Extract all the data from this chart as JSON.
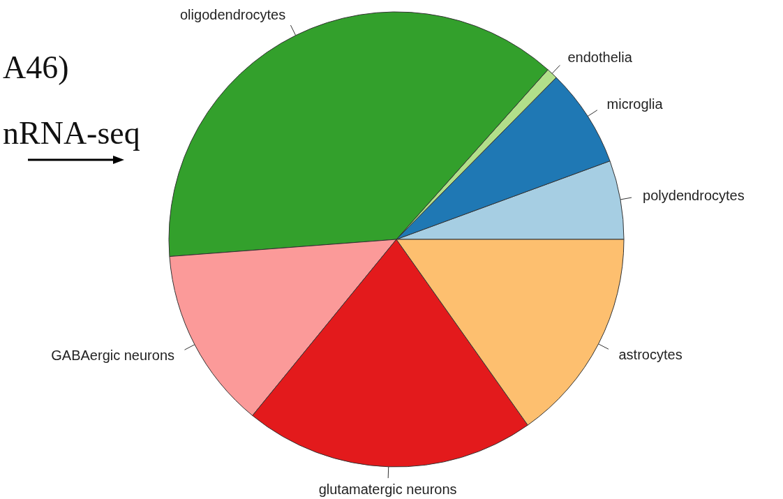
{
  "chart_data": {
    "type": "pie",
    "categories": [
      "polydendrocytes",
      "microglia",
      "endothelia",
      "oligodendrocytes",
      "GABAergic neurons",
      "glutamatergic neurons",
      "astrocytes"
    ],
    "values": [
      5.6,
      7.0,
      0.8,
      37.8,
      12.9,
      20.7,
      15.2
    ],
    "colors": [
      "#a6cee3",
      "#1f78b4",
      "#b2df8a",
      "#33a02c",
      "#fb9a99",
      "#e31a1c",
      "#fdbf6f"
    ],
    "annotations": [
      "A46)",
      "nRNA-seq"
    ]
  }
}
